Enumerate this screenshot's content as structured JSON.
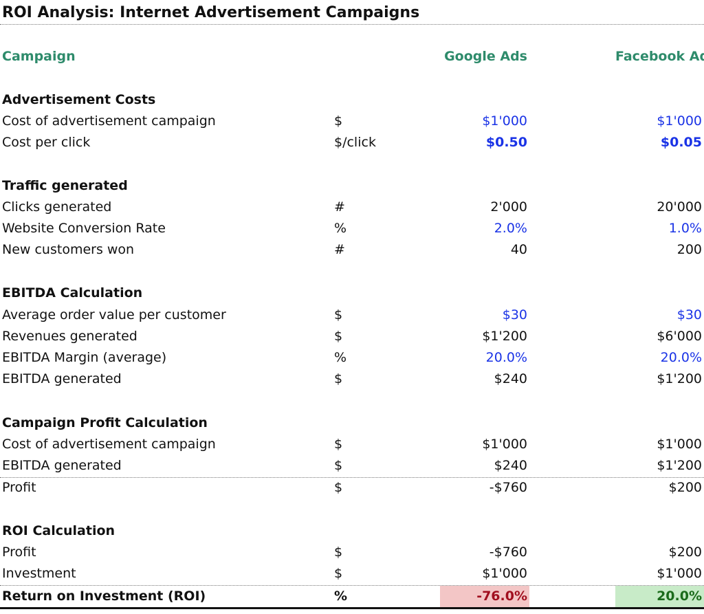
{
  "title": "ROI Analysis: Internet Advertisement Campaigns",
  "header": {
    "label": "Campaign",
    "col1": "Google Ads",
    "col2": "Facebook Ads"
  },
  "sections": {
    "costs": {
      "title": "Advertisement Costs",
      "rows": [
        {
          "label": "Cost of advertisement campaign",
          "unit": "$",
          "v1": "$1'000",
          "v2": "$1'000"
        },
        {
          "label": "Cost per click",
          "unit": "$/click",
          "v1": "$0.50",
          "v2": "$0.05"
        }
      ]
    },
    "traffic": {
      "title": "Traffic generated",
      "rows": [
        {
          "label": "Clicks generated",
          "unit": "#",
          "v1": "2'000",
          "v2": "20'000"
        },
        {
          "label": "Website Conversion Rate",
          "unit": "%",
          "v1": "2.0%",
          "v2": "1.0%"
        },
        {
          "label": "New customers won",
          "unit": "#",
          "v1": "40",
          "v2": "200"
        }
      ]
    },
    "ebitda": {
      "title": "EBITDA Calculation",
      "rows": [
        {
          "label": "Average order value per customer",
          "unit": "$",
          "v1": "$30",
          "v2": "$30"
        },
        {
          "label": "Revenues generated",
          "unit": "$",
          "v1": "$1'200",
          "v2": "$6'000"
        },
        {
          "label": "EBITDA Margin (average)",
          "unit": "%",
          "v1": "20.0%",
          "v2": "20.0%"
        },
        {
          "label": "EBITDA generated",
          "unit": "$",
          "v1": "$240",
          "v2": "$1'200"
        }
      ]
    },
    "profit": {
      "title": "Campaign Profit Calculation",
      "rows": [
        {
          "label": "Cost of advertisement campaign",
          "unit": "$",
          "v1": "$1'000",
          "v2": "$1'000"
        },
        {
          "label": "EBITDA generated",
          "unit": "$",
          "v1": "$240",
          "v2": "$1'200"
        },
        {
          "label": "Profit",
          "unit": "$",
          "v1": "-$760",
          "v2": "$200"
        }
      ]
    },
    "roi": {
      "title": "ROI Calculation",
      "rows": [
        {
          "label": "Profit",
          "unit": "$",
          "v1": "-$760",
          "v2": "$200"
        },
        {
          "label": "Investment",
          "unit": "$",
          "v1": "$1'000",
          "v2": "$1'000"
        },
        {
          "label": "Return on Investment (ROI)",
          "unit": "%",
          "v1": "-76.0%",
          "v2": "20.0%"
        }
      ]
    }
  },
  "colors": {
    "header_green": "#2e8b6b",
    "input_blue": "#1a33e6",
    "negative_fill": "#f3c6c6",
    "negative_text": "#a10f1f",
    "positive_fill": "#c8ebc8",
    "positive_text": "#1b6b1b"
  }
}
